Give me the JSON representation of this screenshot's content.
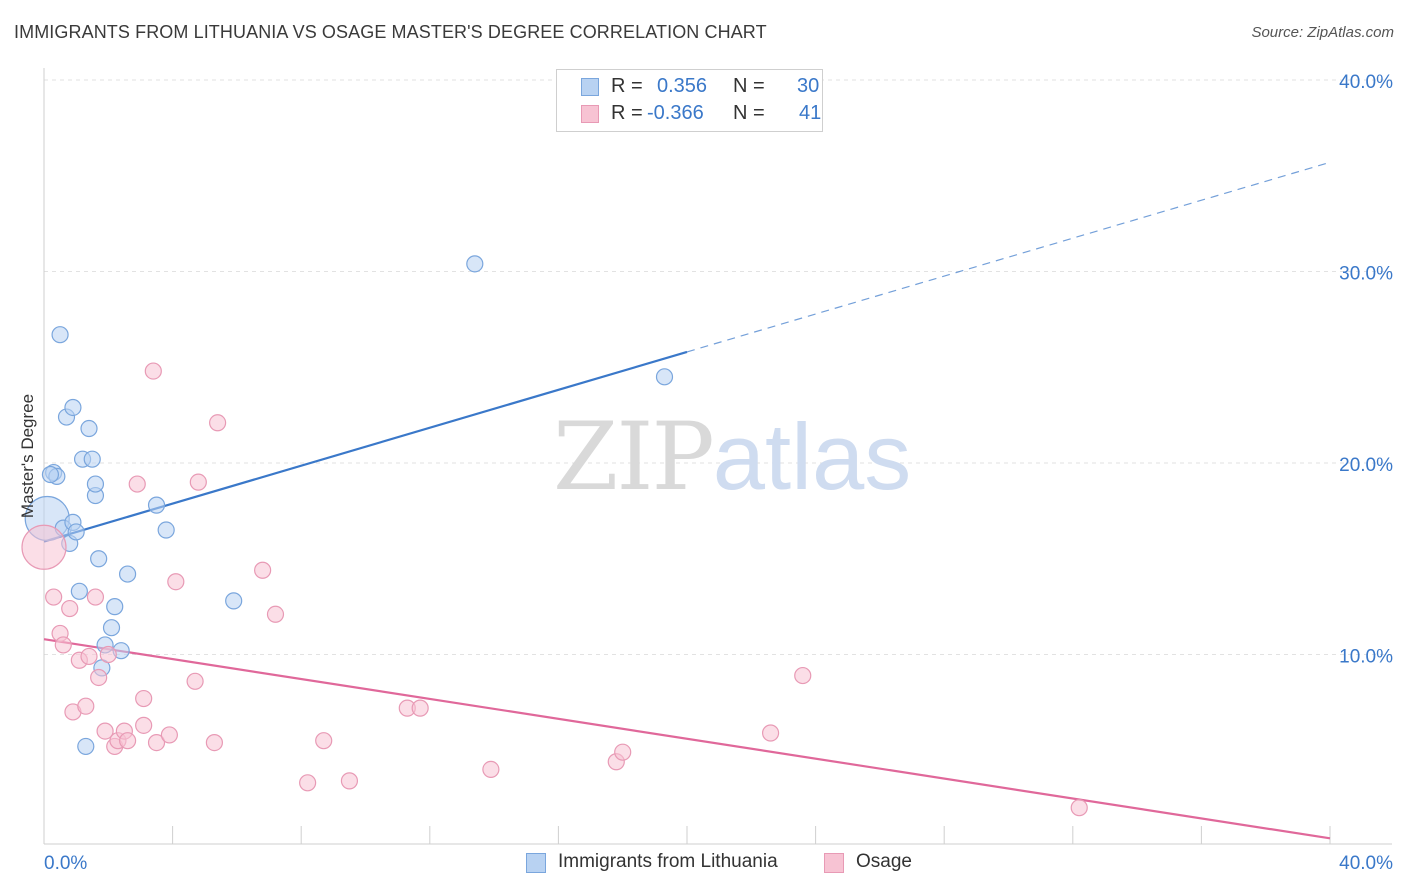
{
  "title": "IMMIGRANTS FROM LITHUANIA VS OSAGE MASTER'S DEGREE CORRELATION CHART",
  "source": "Source: ZipAtlas.com",
  "watermark": {
    "zip": "ZIP",
    "atlas": "atlas"
  },
  "colors": {
    "blue": "#3a78c9",
    "pink": "#e0689a",
    "blue_fill": "#b8d2f2",
    "pink_fill": "#f7c3d3",
    "grid": "#e2e2e2"
  },
  "legend_top": {
    "series1": {
      "r_label": "R =",
      "r_value": "0.356",
      "n_label": "N =",
      "n_value": "30"
    },
    "series2": {
      "r_label": "R =",
      "r_value": "-0.366",
      "n_label": "N =",
      "n_value": "41"
    }
  },
  "legend_bottom": {
    "series1": "Immigrants from Lithuania",
    "series2": "Osage"
  },
  "chart_data": {
    "type": "scatter",
    "title": "IMMIGRANTS FROM LITHUANIA VS OSAGE MASTER'S DEGREE CORRELATION CHART",
    "xlabel": "",
    "ylabel": "Master's Degree",
    "xlim": [
      0,
      40
    ],
    "ylim": [
      0,
      40
    ],
    "x_tick_labels": [
      "0.0%",
      "40.0%"
    ],
    "y_ticks": [
      10,
      20,
      30,
      40
    ],
    "y_tick_labels": [
      "10.0%",
      "20.0%",
      "30.0%",
      "40.0%"
    ],
    "grid": true,
    "legend_position": "top-center",
    "series": [
      {
        "name": "Immigrants from Lithuania",
        "color": "#3a78c9",
        "points": [
          [
            0.1,
            17.1
          ],
          [
            0.3,
            19.5
          ],
          [
            0.4,
            19.3
          ],
          [
            0.5,
            26.7
          ],
          [
            0.6,
            16.6
          ],
          [
            0.7,
            22.4
          ],
          [
            0.8,
            15.8
          ],
          [
            0.9,
            16.9
          ],
          [
            0.9,
            22.9
          ],
          [
            1.0,
            16.4
          ],
          [
            1.1,
            13.3
          ],
          [
            1.2,
            20.2
          ],
          [
            1.4,
            21.8
          ],
          [
            1.5,
            20.2
          ],
          [
            1.6,
            18.3
          ],
          [
            1.6,
            18.9
          ],
          [
            1.7,
            15.0
          ],
          [
            1.8,
            9.3
          ],
          [
            1.9,
            10.5
          ],
          [
            2.1,
            11.4
          ],
          [
            2.2,
            12.5
          ],
          [
            2.4,
            10.2
          ],
          [
            2.6,
            14.2
          ],
          [
            3.5,
            17.8
          ],
          [
            3.8,
            16.5
          ],
          [
            5.9,
            12.8
          ],
          [
            13.4,
            30.4
          ],
          [
            19.3,
            24.5
          ],
          [
            1.3,
            5.2
          ],
          [
            0.2,
            19.4
          ]
        ],
        "trend": {
          "x0": 0,
          "y0": 15.9,
          "x1": 20,
          "y1": 25.8,
          "dashed_to_x": 40,
          "dashed_to_y": 35.7
        }
      },
      {
        "name": "Osage",
        "color": "#e0689a",
        "points": [
          [
            0.0,
            15.6
          ],
          [
            0.3,
            13.0
          ],
          [
            0.5,
            11.1
          ],
          [
            0.6,
            10.5
          ],
          [
            0.8,
            12.4
          ],
          [
            0.9,
            7.0
          ],
          [
            1.1,
            9.7
          ],
          [
            1.3,
            7.3
          ],
          [
            1.4,
            9.9
          ],
          [
            1.6,
            13.0
          ],
          [
            1.7,
            8.8
          ],
          [
            1.9,
            6.0
          ],
          [
            2.0,
            10.0
          ],
          [
            2.2,
            5.2
          ],
          [
            2.3,
            5.5
          ],
          [
            2.5,
            6.0
          ],
          [
            2.6,
            5.5
          ],
          [
            2.9,
            18.9
          ],
          [
            3.1,
            6.3
          ],
          [
            3.1,
            7.7
          ],
          [
            3.4,
            24.8
          ],
          [
            3.5,
            5.4
          ],
          [
            3.9,
            5.8
          ],
          [
            4.1,
            13.8
          ],
          [
            4.7,
            8.6
          ],
          [
            4.8,
            19.0
          ],
          [
            5.3,
            5.4
          ],
          [
            5.4,
            22.1
          ],
          [
            6.8,
            14.4
          ],
          [
            7.2,
            12.1
          ],
          [
            8.2,
            3.3
          ],
          [
            8.7,
            5.5
          ],
          [
            9.5,
            3.4
          ],
          [
            11.3,
            7.2
          ],
          [
            11.7,
            7.2
          ],
          [
            13.9,
            4.0
          ],
          [
            17.8,
            4.4
          ],
          [
            18.0,
            4.9
          ],
          [
            22.6,
            5.9
          ],
          [
            23.6,
            8.9
          ],
          [
            32.2,
            2.0
          ]
        ],
        "trend": {
          "x0": 0,
          "y0": 10.8,
          "x1": 40,
          "y1": 0.4
        }
      }
    ]
  }
}
